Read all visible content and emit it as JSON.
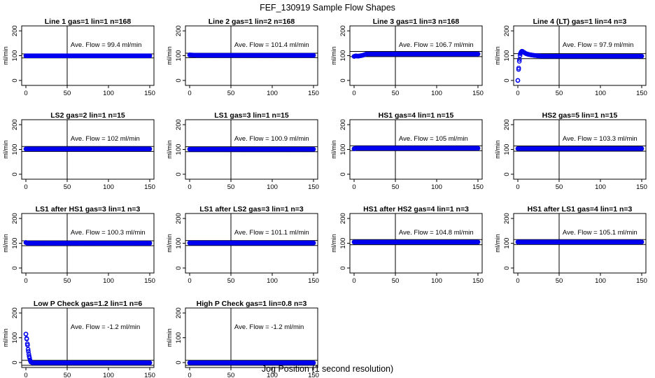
{
  "figure": {
    "title": "FEF_130919  Sample Flow Shapes",
    "xlabel": "Jog Position (1 second resolution)"
  },
  "chart_data": [
    {
      "type": "scatter",
      "title": "Line 1 gas=1 lin=1 n=168",
      "annotation": "Ave. Flow =  99.4  ml/min",
      "ylabel": "ml/min",
      "xlim": [
        0,
        150
      ],
      "ylim": [
        -20,
        220
      ],
      "xticks": [
        0,
        50,
        100,
        150
      ],
      "yticks": [
        0,
        100,
        200
      ],
      "vline": 50,
      "hlines": [
        91,
        107
      ],
      "series": [
        {
          "name": "flow",
          "x": [
            0,
            150
          ],
          "y": [
            99.4,
            99.4
          ]
        }
      ]
    },
    {
      "type": "scatter",
      "title": "Line 2 gas=1 lin=2 n=168",
      "annotation": "Ave. Flow =  101.4  ml/min",
      "ylabel": "ml/min",
      "xlim": [
        0,
        150
      ],
      "ylim": [
        -20,
        220
      ],
      "xticks": [
        0,
        50,
        100,
        150
      ],
      "yticks": [
        0,
        100,
        200
      ],
      "vline": 50,
      "hlines": [
        92,
        110
      ],
      "series": [
        {
          "name": "flow",
          "x": [
            0,
            10,
            150
          ],
          "y": [
            103,
            101.4,
            101.4
          ]
        }
      ]
    },
    {
      "type": "scatter",
      "title": "Line 3 gas=1 lin=3 n=168",
      "annotation": "Ave. Flow =  106.7  ml/min",
      "ylabel": "ml/min",
      "xlim": [
        0,
        150
      ],
      "ylim": [
        -20,
        220
      ],
      "xticks": [
        0,
        50,
        100,
        150
      ],
      "yticks": [
        0,
        100,
        200
      ],
      "vline": 50,
      "hlines": [
        96,
        117
      ],
      "series": [
        {
          "name": "flow",
          "x": [
            0,
            2,
            5,
            10,
            15,
            150
          ],
          "y": [
            97,
            99,
            98,
            101,
            106.7,
            106.7
          ]
        }
      ]
    },
    {
      "type": "scatter",
      "title": "Line 4 (LT) gas=1 lin=4 n=3",
      "annotation": "Ave. Flow =  97.9  ml/min",
      "ylabel": "ml/min",
      "xlim": [
        0,
        150
      ],
      "ylim": [
        -20,
        220
      ],
      "xticks": [
        0,
        50,
        100,
        150
      ],
      "yticks": [
        0,
        100,
        200
      ],
      "vline": 50,
      "hlines": [
        88,
        108
      ],
      "series": [
        {
          "name": "flow",
          "x": [
            0,
            1,
            2,
            3,
            4,
            5,
            6,
            8,
            10,
            13,
            16,
            20,
            25,
            30,
            40,
            150
          ],
          "y": [
            0,
            50,
            85,
            108,
            115,
            118,
            116,
            112,
            108,
            105,
            103,
            101,
            99,
            98,
            97.9,
            97.9
          ]
        }
      ]
    },
    {
      "type": "scatter",
      "title": "LS2 gas=2 lin=1 n=15",
      "annotation": "Ave. Flow =  102  ml/min",
      "ylabel": "ml/min",
      "xlim": [
        0,
        150
      ],
      "ylim": [
        -20,
        220
      ],
      "xticks": [
        0,
        50,
        100,
        150
      ],
      "yticks": [
        0,
        100,
        200
      ],
      "vline": 50,
      "hlines": [
        92,
        112
      ],
      "series": [
        {
          "name": "flow",
          "x": [
            0,
            150
          ],
          "y": [
            102,
            102
          ]
        }
      ]
    },
    {
      "type": "scatter",
      "title": "LS1 gas=3 lin=1 n=15",
      "annotation": "Ave. Flow =  100.9  ml/min",
      "ylabel": "ml/min",
      "xlim": [
        0,
        150
      ],
      "ylim": [
        -20,
        220
      ],
      "xticks": [
        0,
        50,
        100,
        150
      ],
      "yticks": [
        0,
        100,
        200
      ],
      "vline": 50,
      "hlines": [
        91,
        111
      ],
      "series": [
        {
          "name": "flow",
          "x": [
            0,
            150
          ],
          "y": [
            100.9,
            100.9
          ]
        }
      ]
    },
    {
      "type": "scatter",
      "title": "HS1 gas=4 lin=1 n=15",
      "annotation": "Ave. Flow =  105  ml/min",
      "ylabel": "ml/min",
      "xlim": [
        0,
        150
      ],
      "ylim": [
        -20,
        220
      ],
      "xticks": [
        0,
        50,
        100,
        150
      ],
      "yticks": [
        0,
        100,
        200
      ],
      "vline": 50,
      "hlines": [
        95,
        115
      ],
      "series": [
        {
          "name": "flow",
          "x": [
            0,
            3,
            150
          ],
          "y": [
            103,
            105,
            105
          ]
        }
      ]
    },
    {
      "type": "scatter",
      "title": "HS2 gas=5 lin=1 n=15",
      "annotation": "Ave. Flow =  103.3  ml/min",
      "ylabel": "ml/min",
      "xlim": [
        0,
        150
      ],
      "ylim": [
        -20,
        220
      ],
      "xticks": [
        0,
        50,
        100,
        150
      ],
      "yticks": [
        0,
        100,
        200
      ],
      "vline": 50,
      "hlines": [
        93,
        114
      ],
      "series": [
        {
          "name": "flow",
          "x": [
            0,
            150
          ],
          "y": [
            103.3,
            103.3
          ]
        }
      ]
    },
    {
      "type": "scatter",
      "title": "LS1 after HS1 gas=3 lin=1 n=3",
      "annotation": "Ave. Flow =  100.3  ml/min",
      "ylabel": "ml/min",
      "xlim": [
        0,
        150
      ],
      "ylim": [
        -20,
        220
      ],
      "xticks": [
        0,
        50,
        100,
        150
      ],
      "yticks": [
        0,
        100,
        200
      ],
      "vline": 50,
      "hlines": [
        90,
        110
      ],
      "series": [
        {
          "name": "flow",
          "x": [
            0,
            2,
            150
          ],
          "y": [
            103,
            100.3,
            100.3
          ]
        }
      ]
    },
    {
      "type": "scatter",
      "title": "LS1 after LS2 gas=3 lin=1 n=3",
      "annotation": "Ave. Flow =  101.1  ml/min",
      "ylabel": "ml/min",
      "xlim": [
        0,
        150
      ],
      "ylim": [
        -20,
        220
      ],
      "xticks": [
        0,
        50,
        100,
        150
      ],
      "yticks": [
        0,
        100,
        200
      ],
      "vline": 50,
      "hlines": [
        91,
        111
      ],
      "series": [
        {
          "name": "flow",
          "x": [
            0,
            150
          ],
          "y": [
            101.1,
            101.1
          ]
        }
      ]
    },
    {
      "type": "scatter",
      "title": "HS1 after HS2 gas=4 lin=1 n=3",
      "annotation": "Ave. Flow =  104.8  ml/min",
      "ylabel": "ml/min",
      "xlim": [
        0,
        150
      ],
      "ylim": [
        -20,
        220
      ],
      "xticks": [
        0,
        50,
        100,
        150
      ],
      "yticks": [
        0,
        100,
        200
      ],
      "vline": 50,
      "hlines": [
        94,
        115
      ],
      "series": [
        {
          "name": "flow",
          "x": [
            0,
            150
          ],
          "y": [
            104.8,
            104.8
          ]
        }
      ]
    },
    {
      "type": "scatter",
      "title": "HS1 after LS1 gas=4 lin=1 n=3",
      "annotation": "Ave. Flow =  105.1  ml/min",
      "ylabel": "ml/min",
      "xlim": [
        0,
        150
      ],
      "ylim": [
        -20,
        220
      ],
      "xticks": [
        0,
        50,
        100,
        150
      ],
      "yticks": [
        0,
        100,
        200
      ],
      "vline": 50,
      "hlines": [
        95,
        115
      ],
      "series": [
        {
          "name": "flow",
          "x": [
            0,
            150
          ],
          "y": [
            105.1,
            105.1
          ]
        }
      ]
    },
    {
      "type": "scatter",
      "title": "Low P Check gas=1.2 lin=1 n=6",
      "annotation": "Ave. Flow =  -1.2  ml/min",
      "ylabel": "ml/min",
      "xlim": [
        0,
        150
      ],
      "ylim": [
        -20,
        220
      ],
      "xticks": [
        0,
        50,
        100,
        150
      ],
      "yticks": [
        0,
        100,
        200
      ],
      "vline": 50,
      "hlines": [
        -11,
        9
      ],
      "series": [
        {
          "name": "flow",
          "x": [
            0,
            1,
            2,
            3,
            4,
            5,
            6,
            8,
            10,
            150
          ],
          "y": [
            115,
            95,
            70,
            45,
            25,
            10,
            2,
            -1,
            -1.2,
            -1.2
          ]
        }
      ]
    },
    {
      "type": "scatter",
      "title": "High P Check gas=1 lin=0.8 n=3",
      "annotation": "Ave. Flow =  -1.2  ml/min",
      "ylabel": "ml/min",
      "xlim": [
        0,
        150
      ],
      "ylim": [
        -20,
        220
      ],
      "xticks": [
        0,
        50,
        100,
        150
      ],
      "yticks": [
        0,
        100,
        200
      ],
      "vline": 50,
      "hlines": [
        -11,
        9
      ],
      "series": [
        {
          "name": "flow",
          "x": [
            0,
            150
          ],
          "y": [
            -1.2,
            -1.2
          ]
        }
      ]
    }
  ]
}
